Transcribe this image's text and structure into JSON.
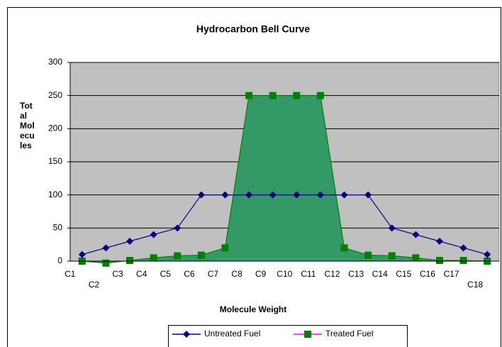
{
  "chart_data": {
    "type": "line",
    "title": "Hydrocarbon Bell Curve",
    "x_label": "Molecule Weight",
    "y_label": [
      "Tot",
      "al",
      "Mol",
      "ecu",
      "les"
    ],
    "categories": [
      "C1",
      "C2",
      "C3",
      "C4",
      "C5",
      "C6",
      "C7",
      "C8",
      "C9",
      "C10",
      "C11",
      "C12",
      "C13",
      "C14",
      "C15",
      "C16",
      "C17",
      "C18"
    ],
    "series": [
      {
        "name": "Untreated Fuel",
        "color": "#000080",
        "marker": "diamond",
        "values": [
          10,
          20,
          30,
          40,
          50,
          100,
          100,
          100,
          100,
          100,
          100,
          100,
          100,
          50,
          40,
          30,
          20,
          10
        ]
      },
      {
        "name": "Treated Fuel",
        "color": "#008000",
        "fill": "#339966",
        "marker": "square",
        "values": [
          0,
          -3,
          1,
          5,
          8,
          9,
          20,
          250,
          250,
          250,
          250,
          20,
          9,
          8,
          5,
          1,
          1,
          0
        ]
      }
    ],
    "ylim": [
      0,
      300
    ],
    "yticks": [
      0,
      50,
      100,
      150,
      200,
      250,
      300
    ],
    "grid": true,
    "legend": "bottom"
  }
}
